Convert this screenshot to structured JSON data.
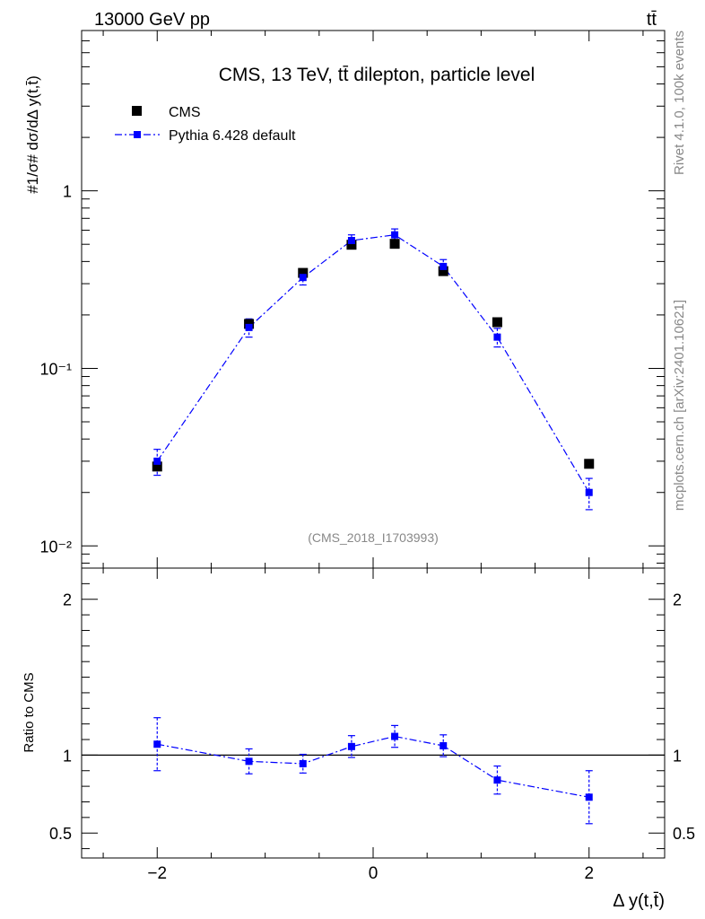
{
  "header": {
    "left": "13000 GeV pp",
    "right": "tt̄"
  },
  "side_labels": {
    "rivet": "Rivet 4.1.0,  100k events",
    "mcplots": "mcplots.cern.ch [arXiv:2401.10621]"
  },
  "chart_data": [
    {
      "type": "scatter",
      "panel": "main",
      "title": "CMS, 13 TeV, tt̄ dilepton, particle level",
      "watermark": "(CMS_2018_I1703993)",
      "xlabel": "Δ y(t,t̄)",
      "ylabel": "#1/σ# dσ/dΔ y(t,t̄)",
      "yscale": "log",
      "xlim": [
        -2.7,
        2.7
      ],
      "ylim": [
        0.0075,
        8.0
      ],
      "x_ticks": [
        -2,
        0,
        2
      ],
      "y_ticks": [
        {
          "value": 0.01,
          "label": "10⁻²"
        },
        {
          "value": 0.1,
          "label": "10⁻¹"
        },
        {
          "value": 1,
          "label": "1"
        }
      ],
      "x": [
        -2.0,
        -1.15,
        -0.65,
        -0.2,
        0.2,
        0.65,
        1.15,
        2.0
      ],
      "legend": {
        "placement": "top-left"
      },
      "series": [
        {
          "name": "CMS",
          "color": "#000000",
          "style": "markers",
          "values": [
            0.028,
            0.178,
            0.345,
            0.497,
            0.503,
            0.353,
            0.182,
            0.029
          ]
        },
        {
          "name": "Pythia 6.428 default",
          "color": "#0000ff",
          "style": "dash-dot-line-markers",
          "values": [
            0.03,
            0.17,
            0.325,
            0.525,
            0.565,
            0.375,
            0.15,
            0.02
          ],
          "err_low": [
            0.005,
            0.02,
            0.03,
            0.04,
            0.045,
            0.035,
            0.018,
            0.004
          ],
          "err_high": [
            0.005,
            0.02,
            0.03,
            0.04,
            0.045,
            0.035,
            0.018,
            0.004
          ]
        }
      ]
    },
    {
      "type": "scatter",
      "panel": "ratio",
      "ylabel": "Ratio to CMS",
      "xlabel": "Δ y(t,t̄)",
      "yscale": "linear",
      "xlim": [
        -2.7,
        2.7
      ],
      "ylim": [
        0.34,
        2.2
      ],
      "y_ticks": [
        {
          "value": 0.5,
          "label": "0.5"
        },
        {
          "value": 1,
          "label": "1"
        },
        {
          "value": 2,
          "label": "2"
        }
      ],
      "reference_line": 1.0,
      "x": [
        -2.0,
        -1.15,
        -0.65,
        -0.2,
        0.2,
        0.65,
        1.15,
        2.0
      ],
      "series": [
        {
          "name": "Pythia 6.428 default",
          "color": "#0000ff",
          "values": [
            1.07,
            0.96,
            0.945,
            1.055,
            1.12,
            1.06,
            0.84,
            0.73
          ],
          "err_low": [
            0.17,
            0.08,
            0.06,
            0.07,
            0.07,
            0.07,
            0.09,
            0.17
          ],
          "err_high": [
            0.17,
            0.08,
            0.06,
            0.07,
            0.07,
            0.07,
            0.09,
            0.17
          ]
        }
      ]
    }
  ]
}
